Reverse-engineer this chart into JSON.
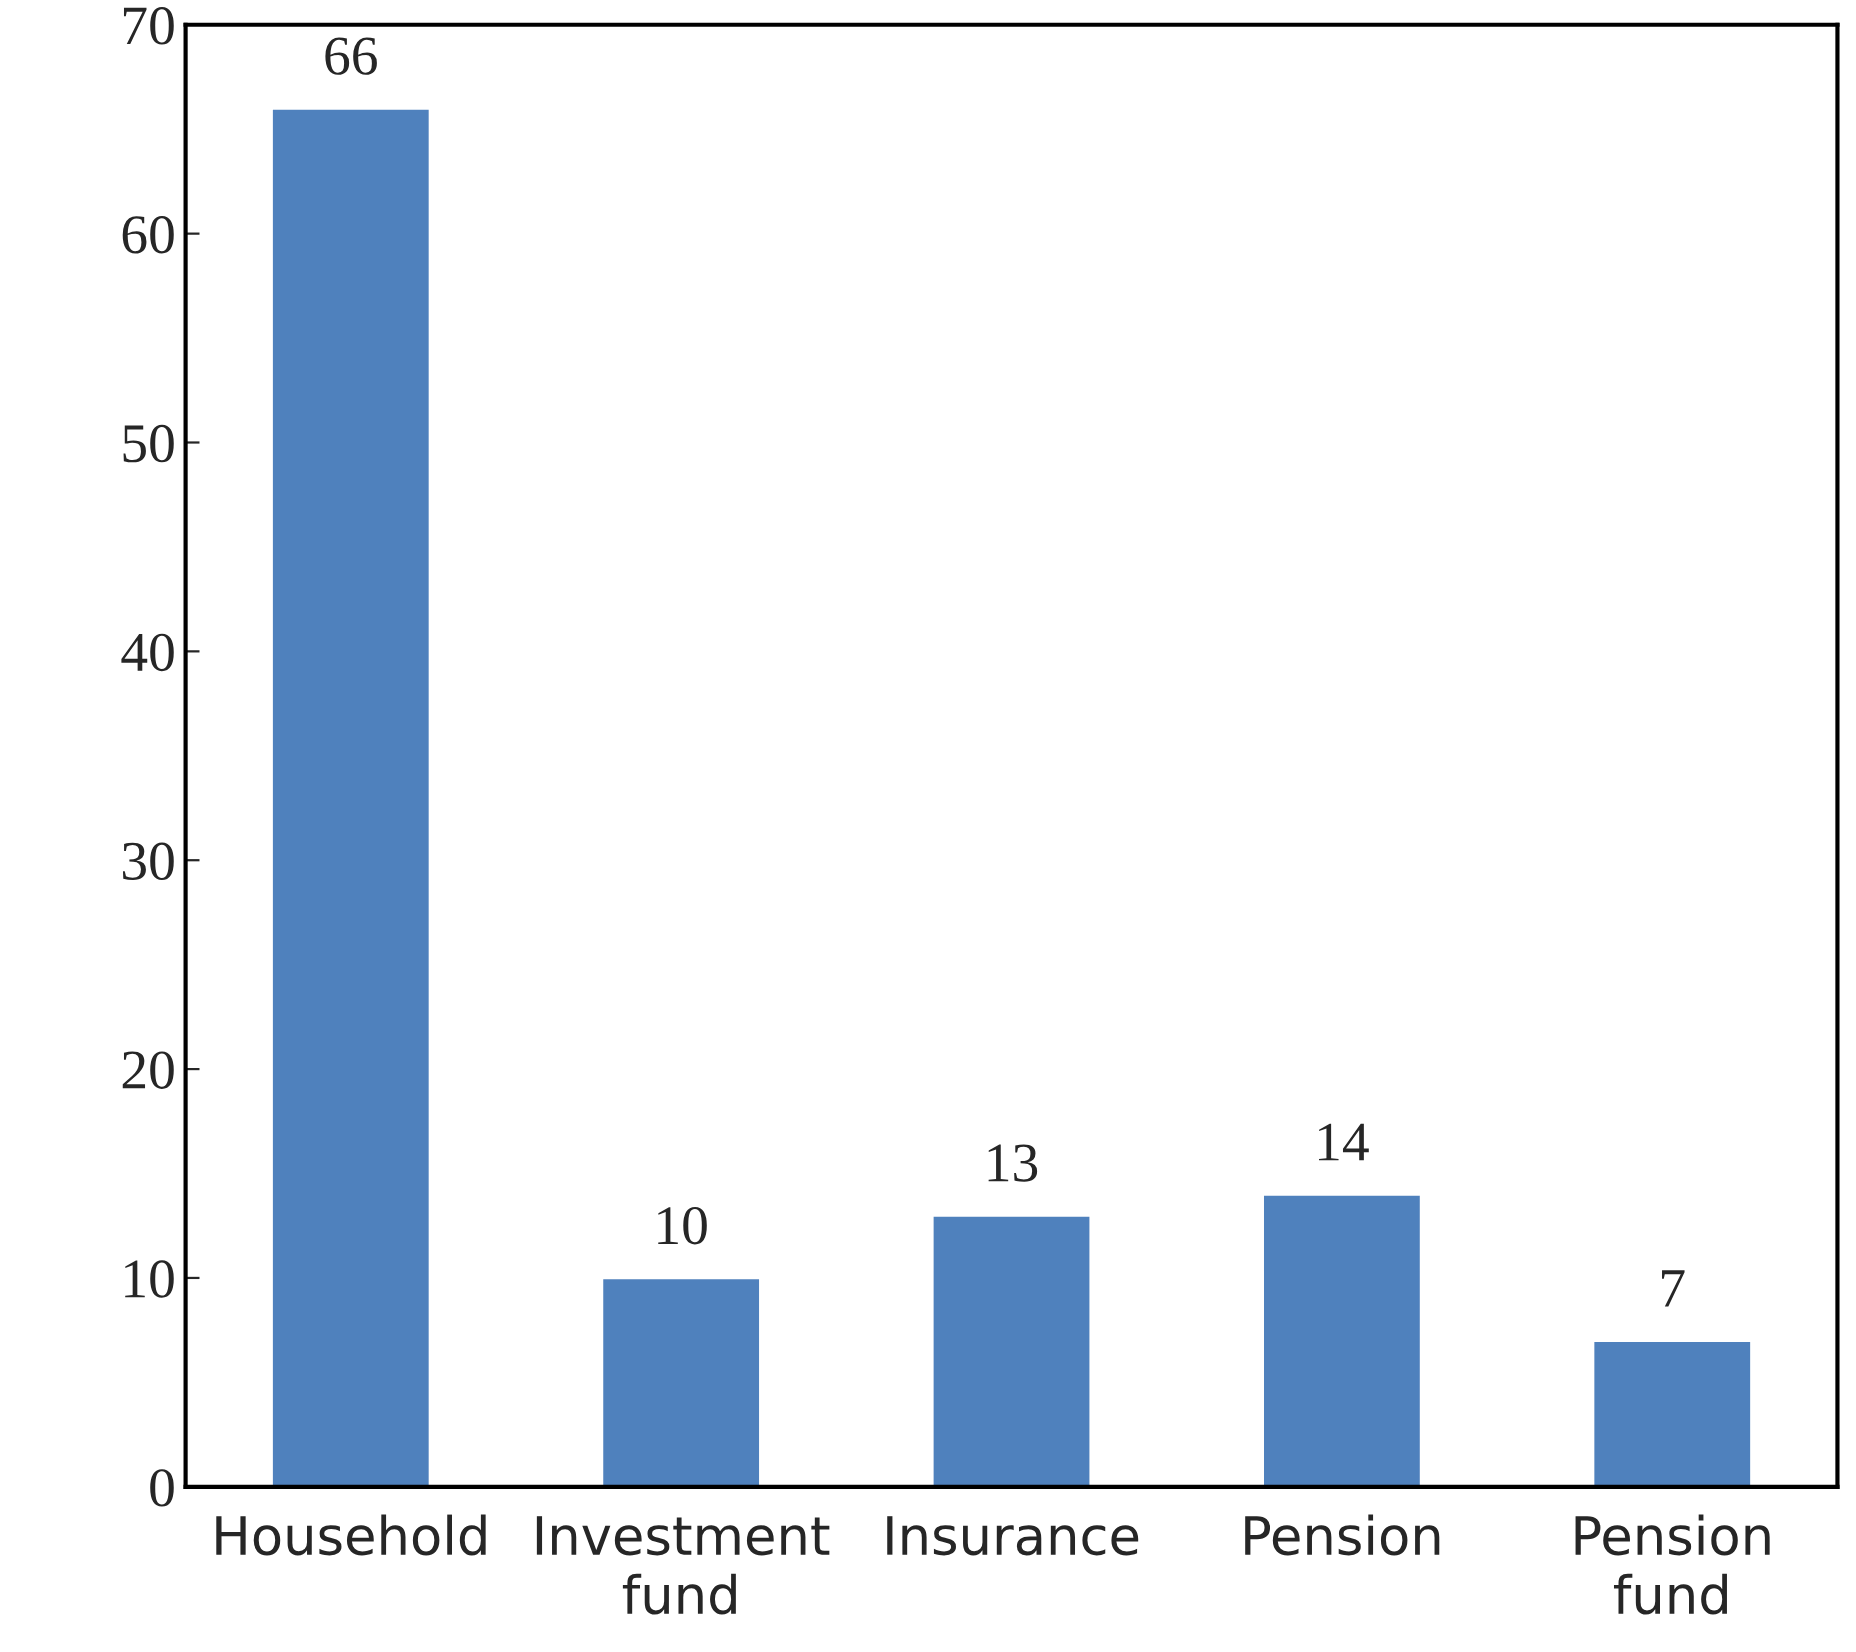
{
  "chart_data": {
    "type": "bar",
    "categories": [
      "Household",
      "Investment\nfund",
      "Insurance",
      "Pension",
      "Pension\nfund"
    ],
    "values": [
      66,
      10,
      13,
      14,
      7
    ],
    "color": "#4f81bd",
    "ylim": [
      0,
      70
    ],
    "yticks": [
      0,
      10,
      20,
      30,
      40,
      50,
      60,
      70
    ],
    "data_labels": true,
    "grid": false
  }
}
